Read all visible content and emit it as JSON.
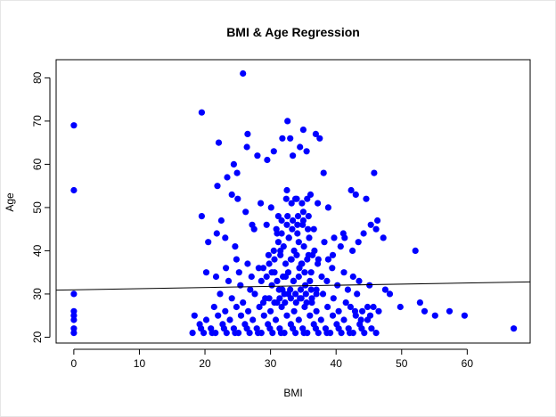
{
  "chart_data": {
    "type": "scatter",
    "title": "BMI & Age Regression",
    "xlabel": "BMI",
    "ylabel": "Age",
    "xlim": [
      -2.7,
      69.6
    ],
    "ylim": [
      18.65,
      84.2
    ],
    "xticks": [
      0,
      10,
      20,
      30,
      40,
      50,
      60
    ],
    "yticks": [
      20,
      30,
      40,
      50,
      60,
      70,
      80
    ],
    "point_color": "#0000ff",
    "line_color": "#000000",
    "grid": false,
    "regression_line": {
      "x": [
        -2.7,
        69.6
      ],
      "y": [
        30.9,
        32.8
      ]
    },
    "series": [
      {
        "x": [
          0,
          0,
          0,
          0,
          0,
          0,
          0,
          0,
          19.5,
          25.8,
          26.5,
          32.6,
          33,
          35,
          36.9,
          37.5,
          21.9,
          22.1,
          23.4,
          24.4,
          24.9,
          26.4,
          28,
          29.5,
          30.5,
          31.8,
          33.4,
          34.5,
          35.5,
          38.1,
          19.5,
          22.5,
          24.1,
          25,
          26.2,
          27.2,
          28.5,
          30.1,
          31.2,
          32.5,
          33.8,
          35,
          36.1,
          37.2,
          38.8,
          42.3,
          43,
          44.6,
          45.8,
          46.3,
          20.5,
          21.8,
          23.1,
          24.6,
          27.5,
          29.4,
          31,
          32.8,
          34.1,
          36.6,
          38.2,
          39.7,
          41.1,
          42.9,
          43.8,
          44.8,
          45.2,
          46.5,
          47.5,
          48.2,
          49.8,
          52.1,
          52.8,
          53.5,
          55.1,
          57.3,
          59.6,
          67.1,
          47.2,
          46.1,
          45.3,
          44.2,
          43.4,
          42.5,
          41.3,
          40.7,
          39.5,
          38.8,
          24.8,
          26.5,
          28.2,
          29.7,
          31.5,
          33.2,
          34.7,
          35.8,
          37.3,
          20.2,
          21.7,
          23.2,
          25.2,
          27.1,
          28.9,
          30.6,
          32.3,
          34.4,
          36.2,
          37.8,
          39.4,
          41.2,
          42.6,
          23.6,
          25.4,
          26.9,
          28.6,
          30.2,
          31.8,
          33.5,
          35.3,
          37,
          38.6,
          40.2,
          41.8,
          43.5,
          45.1,
          22.3,
          24.1,
          25.8,
          27.6,
          29.2,
          31,
          32.7,
          34.5,
          36.3,
          38,
          39.6,
          41.5,
          43.2,
          21.4,
          23.1,
          24.8,
          26.6,
          28.3,
          30,
          31.7,
          33.6,
          35.2,
          37,
          38.7,
          40.4,
          42.2,
          44,
          45.7,
          18.4,
          20.2,
          22,
          23.8,
          25.5,
          27.3,
          29,
          30.8,
          32.5,
          34.3,
          36,
          37.7,
          39.5,
          41.2,
          43,
          44.8,
          19.2,
          20.9,
          22.7,
          24.4,
          26.1,
          27.9,
          29.6,
          31.4,
          33.1,
          34.9,
          36.6,
          38.4,
          40.1,
          41.9,
          43.6,
          45.4,
          18.1,
          19.8,
          21.6,
          23.3,
          25.1,
          26.8,
          28.6,
          30.3,
          32.1,
          33.8,
          35.6,
          37.3,
          39.1,
          40.8,
          42.6,
          44.3,
          46.1,
          19.4,
          21.1,
          22.9,
          24.6,
          26.4,
          28.1,
          29.9,
          31.6,
          33.4,
          35.1,
          36.9,
          38.6,
          40.4,
          42.1,
          43.9,
          30.5,
          31.2,
          32,
          32.8,
          33.6,
          34.3,
          35.1,
          35.9,
          36.7,
          29.8,
          30.6,
          31.5,
          32.3,
          33.1,
          34,
          34.8,
          35.6,
          36.4,
          37.2,
          30.9,
          31.7,
          32.5,
          33.3,
          34.1,
          34.9,
          35.7,
          29.4,
          30.2,
          31,
          31.9,
          32.7,
          33.5,
          34.3,
          35.2,
          36,
          31.3,
          32.1,
          33,
          33.8,
          34.6,
          35.4,
          36.2,
          37,
          28.9,
          29.8,
          30.6,
          31.4,
          32.2,
          33.1,
          33.9,
          34.7,
          35.5,
          36.3,
          32.4,
          33.2,
          34,
          34.8,
          35.6,
          31.7,
          32.6,
          33.4,
          34.2,
          35,
          35.8
        ],
        "y": [
          69,
          54,
          30,
          26,
          25,
          24,
          22,
          21,
          72,
          81,
          67,
          70,
          66,
          68,
          67,
          66,
          55,
          65,
          57,
          60,
          58,
          64,
          62,
          61,
          63,
          66,
          62,
          64,
          63,
          58,
          48,
          47,
          53,
          52,
          49,
          46,
          51,
          50,
          48,
          54,
          52,
          49,
          53,
          51,
          50,
          54,
          53,
          52,
          58,
          47,
          42,
          44,
          43,
          41,
          45,
          46,
          44,
          43,
          46,
          45,
          42,
          43,
          44,
          26,
          24,
          27,
          25,
          26,
          31,
          30,
          27,
          40,
          28,
          26,
          25,
          26,
          25,
          22,
          43,
          45,
          46,
          44,
          42,
          40,
          43,
          41,
          39,
          38,
          38,
          37,
          36,
          39,
          40,
          38,
          37,
          39,
          38,
          35,
          34,
          36,
          35,
          34,
          36,
          35,
          34,
          36,
          35,
          34,
          36,
          35,
          34,
          33,
          32,
          31,
          33,
          32,
          31,
          33,
          32,
          31,
          33,
          32,
          31,
          33,
          32,
          30,
          29,
          28,
          30,
          29,
          28,
          30,
          29,
          28,
          30,
          29,
          28,
          30,
          27,
          26,
          27,
          26,
          27,
          26,
          27,
          26,
          27,
          26,
          27,
          26,
          27,
          26,
          27,
          25,
          24,
          25,
          24,
          25,
          24,
          25,
          24,
          25,
          24,
          25,
          24,
          25,
          24,
          25,
          24,
          23,
          22,
          23,
          22,
          23,
          22,
          23,
          22,
          23,
          22,
          23,
          22,
          23,
          22,
          23,
          22,
          21,
          21,
          21,
          21,
          21,
          21,
          21,
          21,
          21,
          21,
          21,
          21,
          21,
          21,
          21,
          21,
          21,
          22,
          21,
          22,
          21,
          22,
          21,
          22,
          21,
          22,
          21,
          22,
          21,
          22,
          21,
          22,
          40,
          42,
          41,
          43,
          40,
          42,
          41,
          43,
          40,
          37,
          38,
          39,
          37,
          38,
          39,
          37,
          38,
          39,
          37,
          45,
          44,
          46,
          45,
          44,
          46,
          45,
          34,
          35,
          33,
          34,
          35,
          33,
          34,
          35,
          33,
          31,
          30,
          31,
          30,
          31,
          30,
          31,
          30,
          28,
          29,
          28,
          29,
          28,
          29,
          28,
          29,
          28,
          29,
          52,
          51,
          52,
          51,
          52,
          47,
          48,
          47,
          48,
          47,
          48
        ]
      }
    ]
  }
}
